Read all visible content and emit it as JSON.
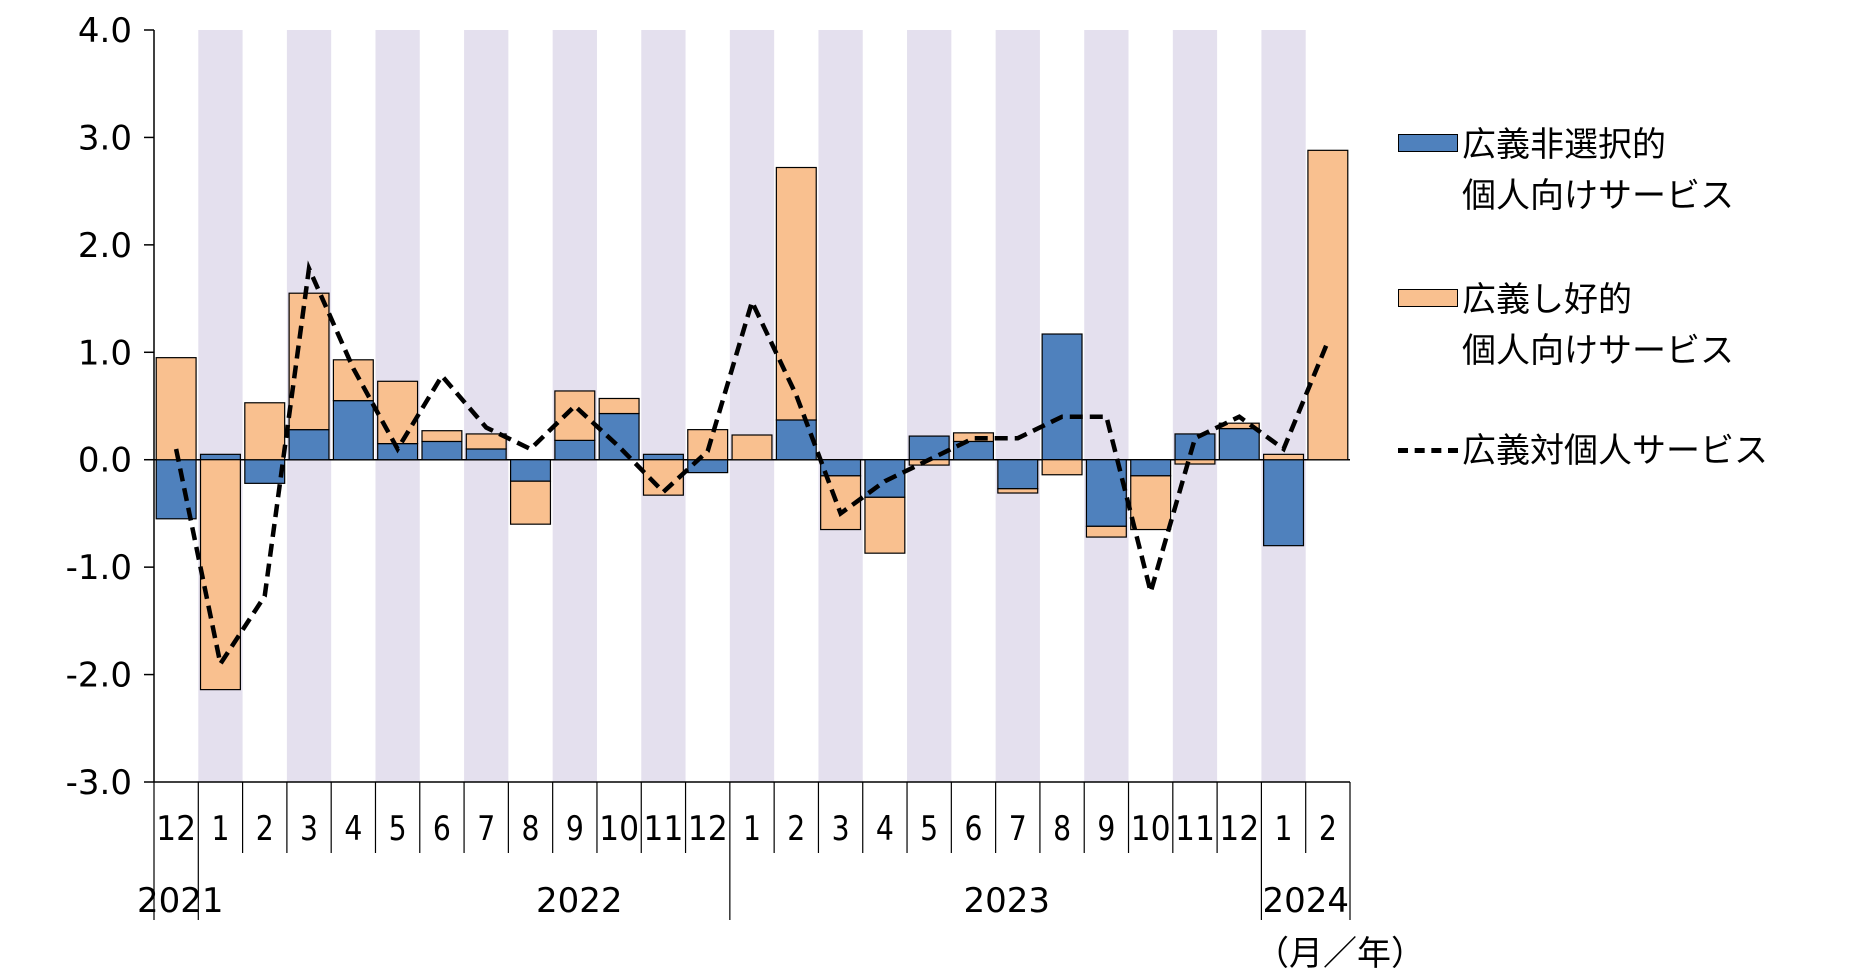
{
  "chart_data": {
    "type": "bar",
    "stacked": true,
    "ylim": [
      -3.0,
      4.0
    ],
    "yticks": [
      "4.0",
      "3.0",
      "2.0",
      "1.0",
      "0.0",
      "-1.0",
      "-2.0",
      "-3.0"
    ],
    "categories": [
      "12",
      "1",
      "2",
      "3",
      "4",
      "5",
      "6",
      "7",
      "8",
      "9",
      "10",
      "11",
      "12",
      "1",
      "2",
      "3",
      "4",
      "5",
      "6",
      "7",
      "8",
      "9",
      "10",
      "11",
      "12",
      "1",
      "2"
    ],
    "year_labels": [
      "2021",
      "2022",
      "2023",
      "2024"
    ],
    "x_unit": "（月／年）",
    "shaded_odd_months": true,
    "colors": {
      "nonselective": "#4f81bd",
      "preference": "#f9c08f",
      "shade": "#e4e0ee",
      "line": "#000000"
    },
    "series": [
      {
        "name_lines": [
          "広義非選択的",
          "個人向けサービス"
        ],
        "kind": "bar",
        "values": [
          -0.55,
          0.05,
          -0.22,
          0.28,
          0.55,
          0.15,
          0.17,
          0.1,
          -0.2,
          0.18,
          0.43,
          0.05,
          -0.12,
          0.0,
          0.37,
          -0.15,
          -0.35,
          0.22,
          0.17,
          -0.27,
          1.17,
          -0.62,
          -0.15,
          0.24,
          0.29,
          -0.8,
          0.0
        ]
      },
      {
        "name_lines": [
          "広義し好的",
          "個人向けサービス"
        ],
        "kind": "bar",
        "values": [
          0.95,
          -2.14,
          0.53,
          1.27,
          0.38,
          0.58,
          0.1,
          0.14,
          -0.4,
          0.46,
          0.14,
          -0.33,
          0.28,
          0.23,
          2.35,
          -0.5,
          -0.52,
          -0.05,
          0.08,
          -0.04,
          -0.14,
          -0.1,
          -0.5,
          -0.04,
          0.05,
          0.05,
          2.88
        ]
      },
      {
        "name_lines": [
          "広義対個人サービス"
        ],
        "kind": "line",
        "values": [
          0.1,
          -1.9,
          -1.27,
          1.78,
          0.85,
          0.1,
          0.78,
          0.3,
          0.1,
          0.5,
          0.12,
          -0.3,
          0.08,
          1.47,
          0.6,
          -0.5,
          -0.2,
          0.0,
          0.2,
          0.2,
          0.4,
          0.4,
          -1.23,
          0.2,
          0.4,
          0.1,
          1.1
        ]
      }
    ]
  }
}
